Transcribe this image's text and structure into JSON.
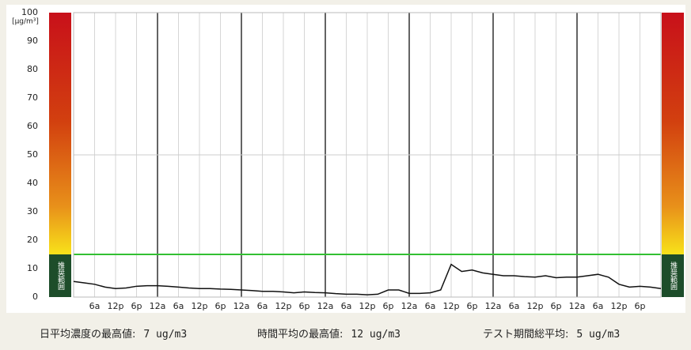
{
  "chart_data": {
    "type": "line",
    "y_unit_label": "[μg/m³]",
    "band_label": "推奨範囲",
    "xlim": [
      0,
      168
    ],
    "xticks": [
      {
        "value": 6,
        "label": "6a"
      },
      {
        "value": 12,
        "label": "12p"
      },
      {
        "value": 18,
        "label": "6p"
      },
      {
        "value": 24,
        "label": "12a"
      },
      {
        "value": 30,
        "label": "6a"
      },
      {
        "value": 36,
        "label": "12p"
      },
      {
        "value": 42,
        "label": "6p"
      },
      {
        "value": 48,
        "label": "12a"
      },
      {
        "value": 54,
        "label": "6a"
      },
      {
        "value": 60,
        "label": "12p"
      },
      {
        "value": 66,
        "label": "6p"
      },
      {
        "value": 72,
        "label": "12a"
      },
      {
        "value": 78,
        "label": "6a"
      },
      {
        "value": 84,
        "label": "12p"
      },
      {
        "value": 90,
        "label": "6p"
      },
      {
        "value": 96,
        "label": "12a"
      },
      {
        "value": 102,
        "label": "6a"
      },
      {
        "value": 108,
        "label": "12p"
      },
      {
        "value": 114,
        "label": "6p"
      },
      {
        "value": 120,
        "label": "12a"
      },
      {
        "value": 126,
        "label": "6a"
      },
      {
        "value": 132,
        "label": "12p"
      },
      {
        "value": 138,
        "label": "6p"
      },
      {
        "value": 144,
        "label": "12a"
      },
      {
        "value": 150,
        "label": "6a"
      },
      {
        "value": 156,
        "label": "12p"
      },
      {
        "value": 162,
        "label": "6p"
      }
    ],
    "ylim": [
      0,
      100
    ],
    "yticks": [
      0,
      10,
      20,
      30,
      40,
      50,
      60,
      70,
      80,
      90,
      100
    ],
    "reference_lines": [
      {
        "value": 50,
        "color": "#cccccc"
      },
      {
        "value": 15,
        "color": "#33c033"
      }
    ],
    "x": [
      0,
      3,
      6,
      9,
      12,
      15,
      18,
      21,
      24,
      27,
      30,
      33,
      36,
      39,
      42,
      45,
      48,
      51,
      54,
      57,
      60,
      63,
      66,
      69,
      72,
      75,
      78,
      81,
      84,
      87,
      90,
      93,
      96,
      99,
      102,
      105,
      108,
      111,
      114,
      117,
      120,
      123,
      126,
      129,
      132,
      135,
      138,
      141,
      144,
      147,
      150,
      153,
      156,
      159,
      162,
      165,
      168
    ],
    "series": [
      {
        "color": "#111111",
        "values": [
          5.5,
          5,
          4.5,
          3.5,
          3,
          3.2,
          3.8,
          4,
          4,
          3.8,
          3.5,
          3.2,
          3,
          3,
          2.8,
          2.7,
          2.5,
          2.3,
          2,
          2,
          1.8,
          1.5,
          1.8,
          1.6,
          1.5,
          1.2,
          1,
          1,
          0.8,
          1,
          2.5,
          2.5,
          1.3,
          1.3,
          1.5,
          2.5,
          11.5,
          9,
          9.5,
          8.5,
          8,
          7.5,
          7.5,
          7.2,
          7,
          7.5,
          6.8,
          7,
          7,
          7.5,
          8,
          7,
          4.5,
          3.5,
          3.8,
          3.5,
          3
        ]
      }
    ],
    "stats": [
      {
        "label": "日平均濃度の最高値:",
        "value": "7 ug/m3"
      },
      {
        "label": "時間平均の最高値:",
        "value": "12 ug/m3"
      },
      {
        "label": "テスト期間総平均:",
        "value": "5 ug/m3"
      }
    ]
  }
}
